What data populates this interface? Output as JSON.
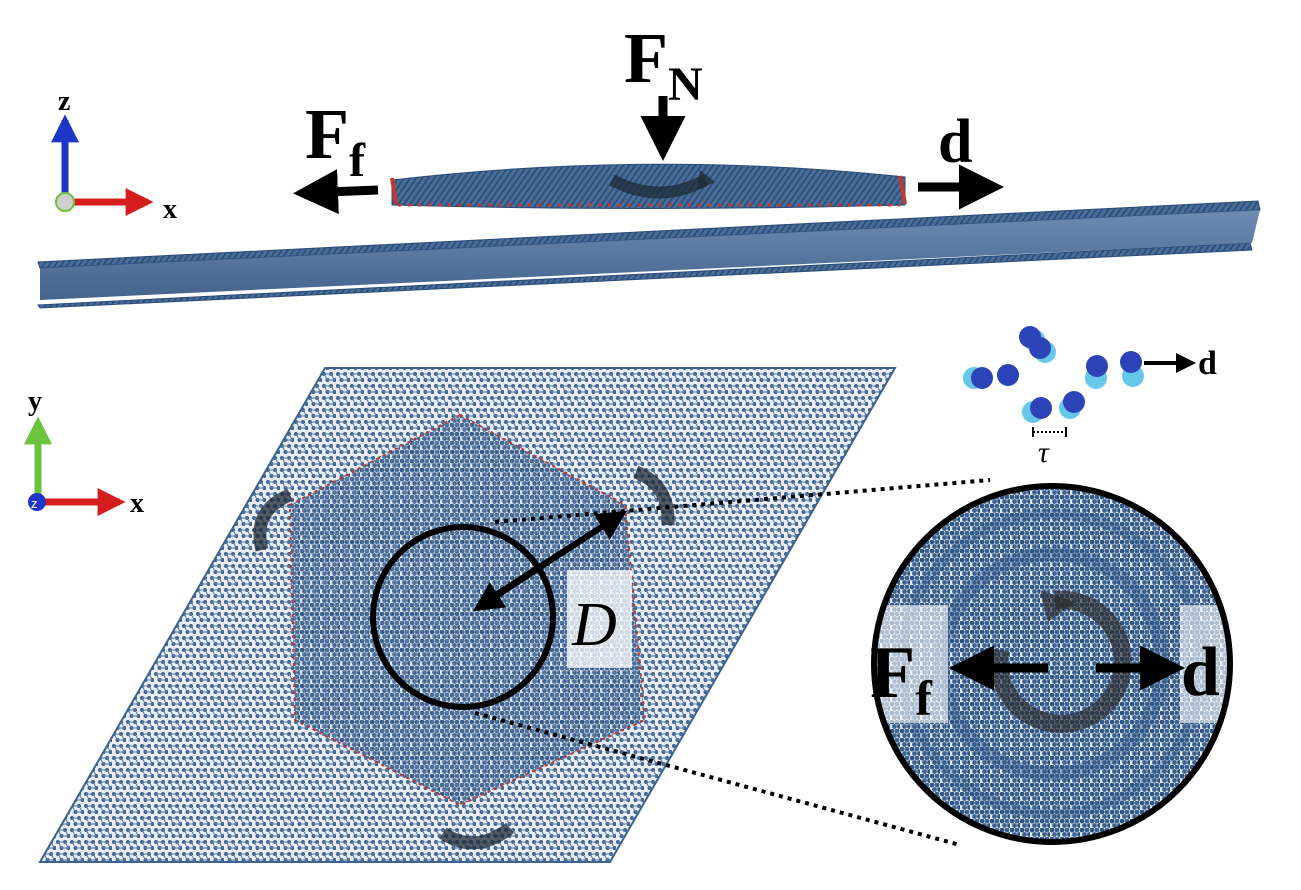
{
  "top_view": {
    "axes": {
      "vertical": "z",
      "horizontal": "x"
    },
    "force_normal": {
      "symbol": "F",
      "subscript": "N"
    },
    "force_friction": {
      "symbol": "F",
      "subscript": "f"
    },
    "displacement": "d"
  },
  "plan_view": {
    "axes": {
      "vertical": "y",
      "horizontal": "x",
      "out_of_plane": "z"
    },
    "diameter_label": "D"
  },
  "inset_atoms": {
    "displacement": "d",
    "tau_label": "τ"
  },
  "zoom_circle": {
    "force_friction": {
      "symbol": "F",
      "subscript": "f"
    },
    "displacement": "d"
  },
  "colors": {
    "atom": "#3d628f",
    "atom_light": "#66c8e8",
    "edge_red": "#c0392b",
    "axis_x": "#d41e1e",
    "axis_y": "#6cc23a",
    "axis_z": "#1d38c9"
  }
}
